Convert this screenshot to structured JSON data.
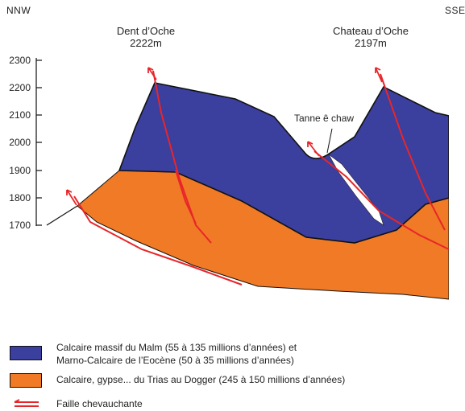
{
  "directions": {
    "left": "NNW",
    "right": "SSE"
  },
  "peaks": [
    {
      "name": "Dent d’Oche",
      "altitude": "2222m"
    },
    {
      "name": "Chateau d’Oche",
      "altitude": "2197m"
    }
  ],
  "axis_ticks": [
    "2300",
    "2200",
    "2100",
    "2000",
    "1900",
    "1800",
    "1700"
  ],
  "cave_label": "Tanne ê chaw",
  "colors": {
    "malm": "#3b3f9e",
    "trias": "#f07a25",
    "fault": "#e8262a",
    "outline": "#111111"
  },
  "legend": [
    {
      "line1": "Calcaire massif du Malm (55 à 135 millions d’années) et",
      "line2": "Marno-Calcaire de l’Eocène (50 à 35 millions d’années)"
    },
    {
      "line1": "Calcaire, gypse... du Trias au Dogger (245 à 150 millions d’années)",
      "line2": ""
    },
    {
      "line1": "Faille chevauchante",
      "line2": ""
    }
  ]
}
